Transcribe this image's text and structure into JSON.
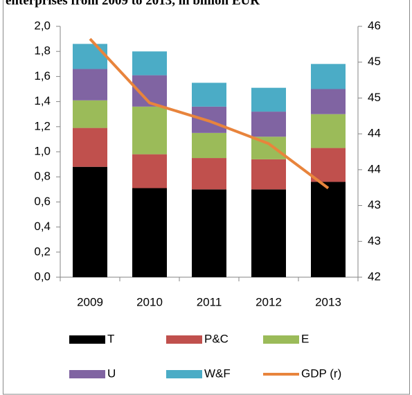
{
  "chart_data": {
    "type": "bar",
    "stacked": true,
    "title": "enterprises from 2009 to 2013, in billion EUR",
    "categories": [
      "2009",
      "2010",
      "2011",
      "2012",
      "2013"
    ],
    "series": [
      {
        "name": "T",
        "color": "#000000",
        "values": [
          0.88,
          0.71,
          0.7,
          0.7,
          0.76
        ]
      },
      {
        "name": "P&C",
        "color": "#c0504d",
        "values": [
          0.31,
          0.27,
          0.25,
          0.24,
          0.27
        ]
      },
      {
        "name": "E",
        "color": "#9bbb59",
        "values": [
          0.22,
          0.38,
          0.2,
          0.18,
          0.27
        ]
      },
      {
        "name": "U",
        "color": "#8064a2",
        "values": [
          0.25,
          0.25,
          0.21,
          0.2,
          0.2
        ]
      },
      {
        "name": "W&F",
        "color": "#4bacc6",
        "values": [
          0.2,
          0.19,
          0.19,
          0.19,
          0.2
        ]
      },
      {
        "name": "GDP (r)",
        "color": "#e8843c",
        "axis": "y2",
        "values": [
          45.8,
          44.78,
          44.49,
          44.13,
          43.42
        ]
      }
    ],
    "ylim": [
      0,
      2
    ],
    "yticks": [
      {
        "value": 0,
        "label": "0,0"
      },
      {
        "value": 0.2,
        "label": "0,2"
      },
      {
        "value": 0.4,
        "label": "0,4"
      },
      {
        "value": 0.6,
        "label": "0,6"
      },
      {
        "value": 0.8,
        "label": "0,8"
      },
      {
        "value": 1.0,
        "label": "1,0"
      },
      {
        "value": 1.2,
        "label": "1,2"
      },
      {
        "value": 1.4,
        "label": "1,4"
      },
      {
        "value": 1.6,
        "label": "1,6"
      },
      {
        "value": 1.8,
        "label": "1,8"
      },
      {
        "value": 2.0,
        "label": "2,0"
      }
    ],
    "y2lim": [
      42,
      46
    ],
    "y2ticks": [
      42,
      {
        "value": 42.571,
        "label": "43"
      },
      {
        "value": 43.143,
        "label": "43"
      },
      {
        "value": 43.714,
        "label": "44"
      },
      {
        "value": 44.286,
        "label": "44"
      },
      {
        "value": 44.857,
        "label": "45"
      },
      {
        "value": 45.429,
        "label": "45"
      },
      46
    ],
    "legend": "bottom"
  }
}
